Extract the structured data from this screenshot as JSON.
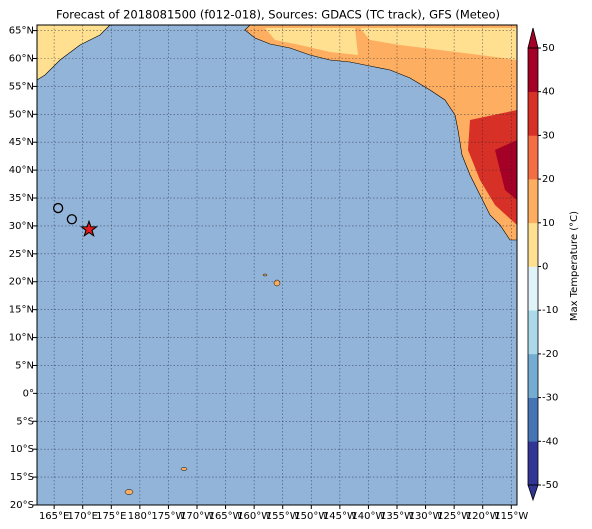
{
  "chart_data": {
    "type": "map",
    "title": "Forecast of 2018081500 (f012-018), Sources: GDACS (TC track), GFS (Meteo)",
    "xlim": [
      162,
      246
    ],
    "ylim": [
      -20,
      66
    ],
    "xticks": [
      {
        "value": 165,
        "label": "165°E"
      },
      {
        "value": 170,
        "label": "170°E"
      },
      {
        "value": 175,
        "label": "175°E"
      },
      {
        "value": 180,
        "label": "180°"
      },
      {
        "value": 185,
        "label": "175°W"
      },
      {
        "value": 190,
        "label": "170°W"
      },
      {
        "value": 195,
        "label": "165°W"
      },
      {
        "value": 200,
        "label": "160°W"
      },
      {
        "value": 205,
        "label": "155°W"
      },
      {
        "value": 210,
        "label": "150°W"
      },
      {
        "value": 215,
        "label": "145°W"
      },
      {
        "value": 220,
        "label": "140°W"
      },
      {
        "value": 225,
        "label": "135°W"
      },
      {
        "value": 230,
        "label": "130°W"
      },
      {
        "value": 235,
        "label": "125°W"
      },
      {
        "value": 240,
        "label": "120°W"
      },
      {
        "value": 245,
        "label": "115°W"
      }
    ],
    "yticks": [
      {
        "value": 65,
        "label": "65°N"
      },
      {
        "value": 60,
        "label": "60°N"
      },
      {
        "value": 55,
        "label": "55°N"
      },
      {
        "value": 50,
        "label": "50°N"
      },
      {
        "value": 45,
        "label": "45°N"
      },
      {
        "value": 40,
        "label": "40°N"
      },
      {
        "value": 35,
        "label": "35°N"
      },
      {
        "value": 30,
        "label": "30°N"
      },
      {
        "value": 25,
        "label": "25°N"
      },
      {
        "value": 20,
        "label": "20°N"
      },
      {
        "value": 15,
        "label": "15°N"
      },
      {
        "value": 10,
        "label": "10°N"
      },
      {
        "value": 5,
        "label": "5°N"
      },
      {
        "value": 0,
        "label": "0°"
      },
      {
        "value": -5,
        "label": "5°S"
      },
      {
        "value": -10,
        "label": "10°S"
      },
      {
        "value": -15,
        "label": "15°S"
      },
      {
        "value": -20,
        "label": "20°S"
      }
    ],
    "grid": true,
    "ocean_color": "#92b4d9",
    "track": {
      "lon": [
        165.7,
        168.1,
        171.1
      ],
      "lat": [
        33.2,
        31.2,
        29.4
      ],
      "markers": [
        "circle",
        "circle",
        "star"
      ],
      "star_color": "#e41a1c"
    },
    "colorbar": {
      "label": "Max Temperature (°C)",
      "clim": [
        -50,
        50
      ],
      "ticks": [
        50,
        40,
        30,
        20,
        10,
        0,
        -10,
        -20,
        -30,
        -40,
        -50
      ],
      "colors": [
        "#313695",
        "#4575b4",
        "#74add1",
        "#abd9e9",
        "#e0f3f8",
        "#fee090",
        "#fdae61",
        "#f46d43",
        "#d73027",
        "#a50026"
      ]
    }
  }
}
